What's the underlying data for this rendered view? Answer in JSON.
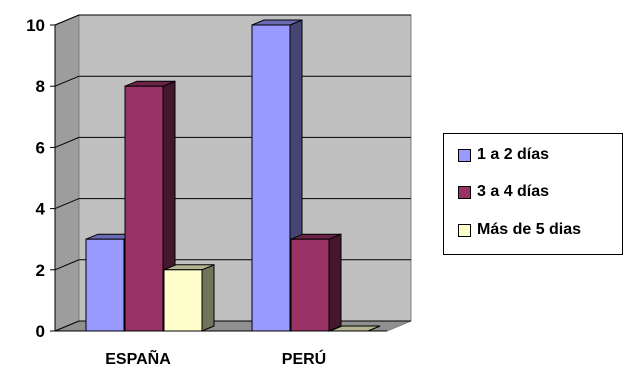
{
  "chart_data": {
    "type": "bar",
    "categories": [
      "ESPAÑA",
      "PERÚ"
    ],
    "series": [
      {
        "name": "1 a 2 días",
        "values": [
          3,
          10
        ],
        "color": "#9999ff"
      },
      {
        "name": "3 a 4 días",
        "values": [
          8,
          3
        ],
        "color": "#993366"
      },
      {
        "name": "Más de 5 dias",
        "values": [
          2,
          0
        ],
        "color": "#ffffcc"
      }
    ],
    "ylim": [
      0,
      10
    ],
    "yticks": [
      0,
      2,
      4,
      6,
      8,
      10
    ],
    "grid": true,
    "legend_position": "right",
    "wall_color": "#c0c0c0"
  }
}
